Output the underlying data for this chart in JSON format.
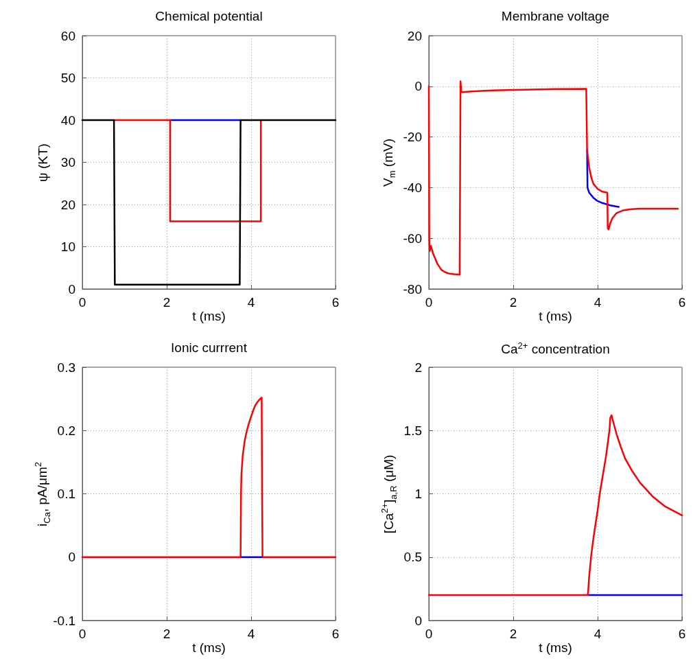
{
  "chart_data": [
    {
      "type": "line",
      "title": "Chemical potential",
      "xlabel": "t (ms)",
      "ylabel": "ψ  (KT)",
      "xlim": [
        0,
        6
      ],
      "xticks": [
        0,
        2,
        4,
        6
      ],
      "ylim": [
        0,
        60
      ],
      "yticks": [
        0,
        10,
        20,
        30,
        40,
        50,
        60
      ],
      "grid": true,
      "marker": "none",
      "line_style": "solid",
      "series": [
        {
          "color": "#0000ff",
          "x": [
            2.08,
            3.75
          ],
          "values": [
            40,
            40
          ]
        },
        {
          "color": "#ff0000",
          "x": [
            0.75,
            2.08,
            2.08,
            4.23,
            4.23
          ],
          "values": [
            40,
            40,
            16,
            16,
            40
          ]
        },
        {
          "color": "#000000",
          "x": [
            0,
            0.75,
            0.77,
            3.73,
            3.75,
            6
          ],
          "values": [
            40,
            40,
            1,
            1,
            40,
            40
          ]
        }
      ]
    },
    {
      "type": "line",
      "title": "Membrane voltage",
      "xlabel": "t (ms)",
      "ylabel": "V$_{m}$  (mV)",
      "xlim": [
        0,
        6
      ],
      "xticks": [
        0,
        2,
        4,
        6
      ],
      "ylim": [
        -80,
        20
      ],
      "yticks": [
        -80,
        -60,
        -40,
        -20,
        0,
        20
      ],
      "grid": true,
      "marker": "none",
      "line_style": "solid",
      "series": [
        {
          "color": "#0000ff",
          "x": [
            3.75,
            3.76,
            3.8,
            3.9,
            4.0,
            4.1,
            4.3,
            4.5
          ],
          "values": [
            -25,
            -40,
            -42,
            -44,
            -45.3,
            -46,
            -47,
            -47.6
          ]
        },
        {
          "color": "#ff0000",
          "x": [
            0,
            0.01,
            0.02,
            0.05,
            0.1,
            0.2,
            0.3,
            0.4,
            0.5,
            0.6,
            0.73,
            0.74,
            0.75,
            0.77,
            0.79,
            1.0,
            1.5,
            2.0,
            3.0,
            3.73,
            3.75,
            3.8,
            3.85,
            3.9,
            4.0,
            4.1,
            4.23,
            4.24,
            4.26,
            4.3,
            4.35,
            4.45,
            4.6,
            4.8,
            5.0,
            5.9
          ],
          "values": [
            0,
            -60,
            -65,
            -63,
            -66,
            -70,
            -72.5,
            -73.5,
            -74,
            -74.2,
            -74.3,
            -40,
            2,
            -2,
            -2.3,
            -2,
            -1.6,
            -1.4,
            -1.1,
            -1,
            -25,
            -32,
            -36,
            -38.5,
            -40.5,
            -41.5,
            -42,
            -56,
            -56.5,
            -54,
            -52,
            -50,
            -49,
            -48.5,
            -48.3,
            -48.3
          ]
        }
      ]
    },
    {
      "type": "line",
      "title": "Ionic currrent",
      "xlabel": "t (ms)",
      "ylabel": "i$_{Ca}$, pA/μm$^{2}$",
      "xlim": [
        0,
        6
      ],
      "xticks": [
        0,
        2,
        4,
        6
      ],
      "ylim": [
        -0.1,
        0.3
      ],
      "yticks": [
        -0.1,
        0,
        0.1,
        0.2,
        0.3
      ],
      "grid": true,
      "marker": "none",
      "line_style": "solid",
      "series": [
        {
          "color": "#ff0000",
          "x": [
            0,
            3.75,
            3.76,
            3.77,
            3.8,
            3.85,
            3.9,
            3.95,
            4.0,
            4.05,
            4.1,
            4.15,
            4.2,
            4.25,
            4.26,
            4.27,
            6
          ],
          "values": [
            0,
            0,
            0.1,
            0.13,
            0.16,
            0.185,
            0.2,
            0.212,
            0.222,
            0.232,
            0.24,
            0.245,
            0.249,
            0.252,
            0.1,
            0,
            0
          ]
        },
        {
          "color": "#0000ff",
          "x": [
            3.77,
            4.25
          ],
          "values": [
            0,
            0
          ]
        }
      ]
    },
    {
      "type": "line",
      "title": "Ca$^{2+}$ concentration",
      "xlabel": "t (ms)",
      "ylabel": "[Ca$^{2+}$]$_{a,R}$ (μM)",
      "xlim": [
        0,
        6
      ],
      "xticks": [
        0,
        2,
        4,
        6
      ],
      "ylim": [
        0,
        2
      ],
      "yticks": [
        0,
        0.5,
        1,
        1.5,
        2
      ],
      "grid": true,
      "marker": "none",
      "line_style": "solid",
      "series": [
        {
          "color": "#0000ff",
          "x": [
            3.77,
            6
          ],
          "values": [
            0.2,
            0.2
          ]
        },
        {
          "color": "#ff0000",
          "x": [
            0,
            3.77,
            3.8,
            3.85,
            3.9,
            3.95,
            4.0,
            4.05,
            4.1,
            4.2,
            4.28,
            4.3,
            4.33,
            4.36,
            4.45,
            4.55,
            4.65,
            4.8,
            5.0,
            5.3,
            5.6,
            6.0
          ],
          "values": [
            0.2,
            0.2,
            0.35,
            0.52,
            0.65,
            0.76,
            0.87,
            1.0,
            1.1,
            1.3,
            1.5,
            1.6,
            1.62,
            1.58,
            1.47,
            1.37,
            1.28,
            1.19,
            1.09,
            0.98,
            0.9,
            0.83
          ]
        }
      ]
    }
  ]
}
